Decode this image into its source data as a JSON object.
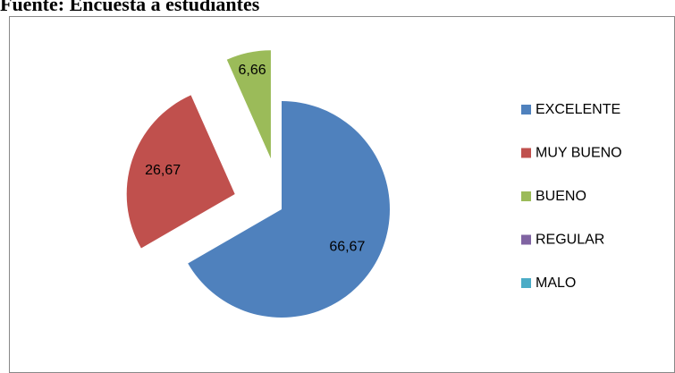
{
  "chart_data": {
    "type": "pie",
    "title": "Fuente: Encuesta a estudiantes",
    "categories": [
      "EXCELENTE",
      "MUY BUENO",
      "BUENO",
      "REGULAR",
      "MALO"
    ],
    "values": [
      66.67,
      26.67,
      6.66,
      0,
      0
    ],
    "value_labels": [
      "66,67",
      "26,67",
      "6,66",
      null,
      null
    ],
    "colors": [
      "#4f81bd",
      "#c0504d",
      "#9bbb59",
      "#8064a2",
      "#4bacc6"
    ],
    "legend": "right"
  }
}
